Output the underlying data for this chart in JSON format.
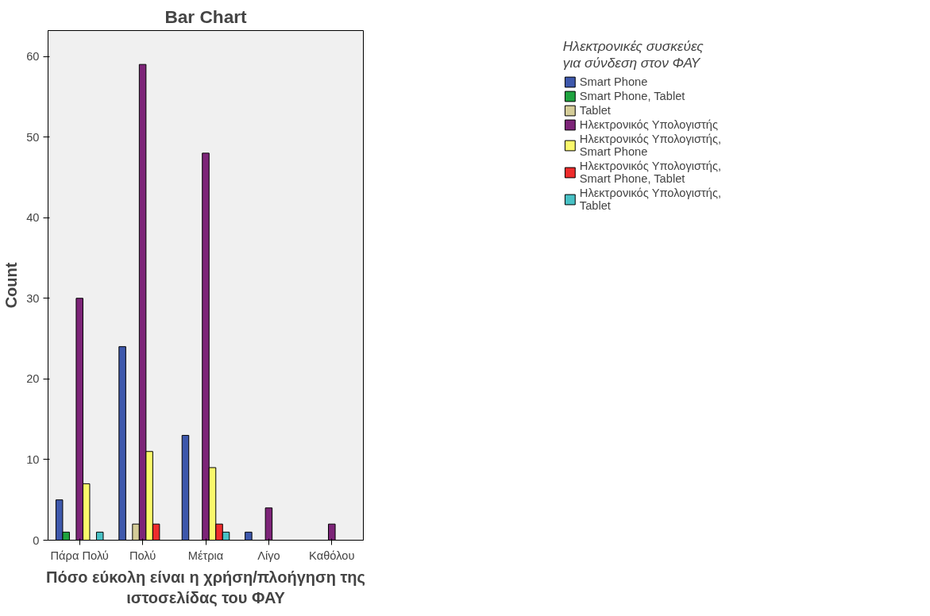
{
  "chart_data": {
    "type": "bar",
    "title": "Bar Chart",
    "xlabel": "Πόσο εύκολη είναι η χρήση/πλοήγηση της ιστοσελίδας του ΦΑΥ",
    "ylabel": "Count",
    "legend_title": "Ηλεκτρονικές συσκεύες για σύνδεση στον ΦΑΥ",
    "categories": [
      "Πάρα Πολύ",
      "Πολύ",
      "Μέτρια",
      "Λίγο",
      "Καθόλου"
    ],
    "series": [
      {
        "name": "Smart Phone",
        "color": "#3e58ac",
        "values": [
          5,
          24,
          13,
          1,
          null
        ]
      },
      {
        "name": "Smart Phone, Tablet",
        "color": "#1fa33f",
        "values": [
          1,
          null,
          null,
          null,
          null
        ]
      },
      {
        "name": "Tablet",
        "color": "#d4cc98",
        "values": [
          null,
          2,
          null,
          null,
          null
        ]
      },
      {
        "name": "Ηλεκτρονικός Υπολογιστής",
        "color": "#7d2478",
        "values": [
          30,
          59,
          48,
          4,
          2
        ]
      },
      {
        "name": "Ηλεκτρονικός Υπολογιστής, Smart Phone",
        "color": "#fbf96b",
        "values": [
          7,
          11,
          9,
          null,
          null
        ]
      },
      {
        "name": "Ηλεκτρονικός Υπολογιστής, Smart Phone, Tablet",
        "color": "#ee2c2c",
        "values": [
          null,
          2,
          2,
          null,
          null
        ]
      },
      {
        "name": "Ηλεκτρονικός Υπολογιστής, Tablet",
        "color": "#48c1c5",
        "values": [
          1,
          null,
          1,
          null,
          null
        ]
      }
    ],
    "ylim": [
      0,
      63.2
    ],
    "yticks": [
      0,
      10,
      20,
      30,
      40,
      50,
      60
    ],
    "grid": false,
    "legend": "right"
  }
}
